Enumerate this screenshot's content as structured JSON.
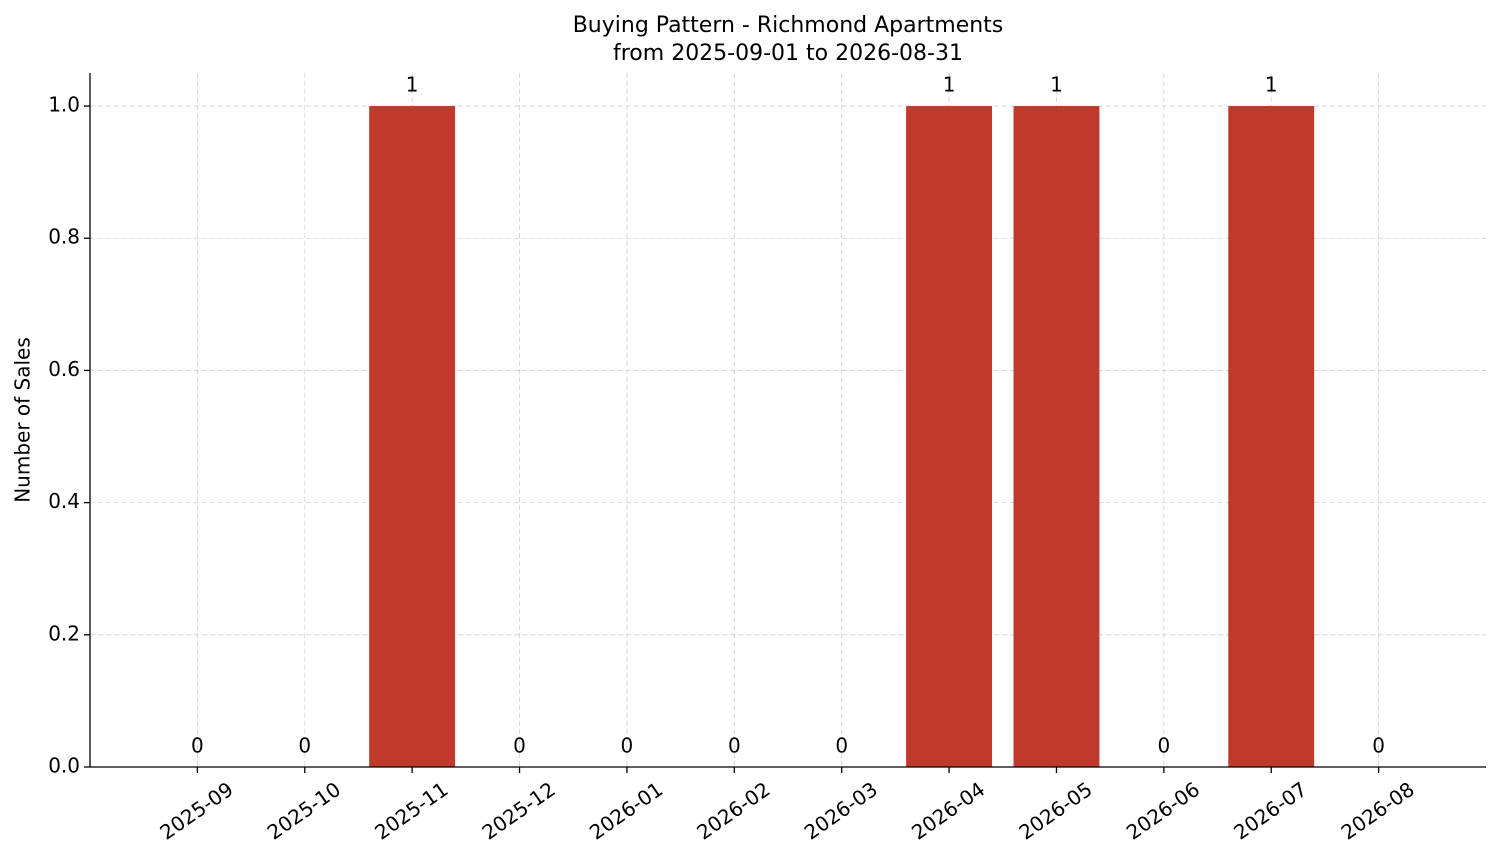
{
  "chart_data": {
    "type": "bar",
    "title": "Buying Pattern - Richmond Apartments",
    "subtitle": "from 2025-09-01 to 2026-08-31",
    "y_label": "Number of Sales",
    "categories": [
      "2025-09",
      "2025-10",
      "2025-11",
      "2025-12",
      "2026-01",
      "2026-02",
      "2026-03",
      "2026-04",
      "2026-05",
      "2026-06",
      "2026-07",
      "2026-08"
    ],
    "values": [
      0,
      0,
      1,
      0,
      0,
      0,
      0,
      1,
      1,
      0,
      1,
      0
    ],
    "color": "#c0392b",
    "ylim": [
      0,
      1.05
    ],
    "yticks": [
      {
        "value": 0,
        "label": "0.0"
      },
      0.2,
      0.4,
      0.6,
      0.8,
      {
        "value": 1,
        "label": "1.0"
      }
    ],
    "grid": true
  }
}
